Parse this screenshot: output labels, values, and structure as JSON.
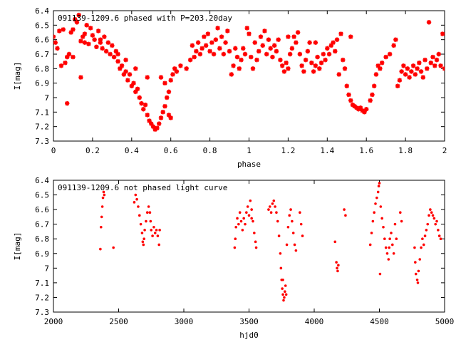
{
  "chart_data": [
    {
      "type": "scatter",
      "title": "091139-1209.6 phased with P=203.20day",
      "xlabel": "phase",
      "ylabel": "I[mag]",
      "xlim": [
        0,
        2
      ],
      "ylim": [
        7.3,
        6.4
      ],
      "y_inverted": true,
      "grid": false,
      "legend": "none",
      "marker": "star",
      "color": "#ff0000",
      "x_ticks": [
        "0",
        "0.2",
        "0.4",
        "0.6",
        "0.8",
        "1",
        "1.2",
        "1.4",
        "1.6",
        "1.8",
        "2"
      ],
      "y_ticks": [
        "6.4",
        "6.5",
        "6.6",
        "6.7",
        "6.8",
        "6.9",
        "7",
        "7.1",
        "7.2",
        "7.3"
      ],
      "points": [
        [
          0.0,
          6.58
        ],
        [
          0.01,
          6.62
        ],
        [
          0.02,
          6.66
        ],
        [
          0.03,
          6.54
        ],
        [
          0.04,
          6.78
        ],
        [
          0.05,
          6.53
        ],
        [
          0.06,
          6.76
        ],
        [
          0.07,
          6.72
        ],
        [
          0.07,
          7.04
        ],
        [
          0.08,
          6.7
        ],
        [
          0.09,
          6.55
        ],
        [
          0.1,
          6.72
        ],
        [
          0.1,
          6.53
        ],
        [
          0.11,
          6.46
        ],
        [
          0.12,
          6.48
        ],
        [
          0.13,
          6.43
        ],
        [
          0.14,
          6.61
        ],
        [
          0.14,
          6.86
        ],
        [
          0.15,
          6.58
        ],
        [
          0.16,
          6.62
        ],
        [
          0.17,
          6.5
        ],
        [
          0.18,
          6.63
        ],
        [
          0.19,
          6.52
        ],
        [
          0.2,
          6.57
        ],
        [
          0.21,
          6.6
        ],
        [
          0.22,
          6.65
        ],
        [
          0.23,
          6.54
        ],
        [
          0.24,
          6.62
        ],
        [
          0.25,
          6.66
        ],
        [
          0.26,
          6.58
        ],
        [
          0.27,
          6.68
        ],
        [
          0.28,
          6.62
        ],
        [
          0.29,
          6.7
        ],
        [
          0.3,
          6.64
        ],
        [
          0.31,
          6.72
        ],
        [
          0.32,
          6.68
        ],
        [
          0.33,
          6.75
        ],
        [
          0.34,
          6.8
        ],
        [
          0.35,
          6.78
        ],
        [
          0.36,
          6.84
        ],
        [
          0.37,
          6.82
        ],
        [
          0.38,
          6.88
        ],
        [
          0.39,
          6.84
        ],
        [
          0.4,
          6.92
        ],
        [
          0.41,
          6.9
        ],
        [
          0.42,
          6.96
        ],
        [
          0.43,
          6.94
        ],
        [
          0.44,
          7.0
        ],
        [
          0.45,
          7.04
        ],
        [
          0.46,
          7.08
        ],
        [
          0.47,
          7.05
        ],
        [
          0.48,
          7.12
        ],
        [
          0.49,
          7.16
        ],
        [
          0.5,
          7.18
        ],
        [
          0.51,
          7.2
        ],
        [
          0.52,
          7.22
        ],
        [
          0.53,
          7.21
        ],
        [
          0.54,
          7.18
        ],
        [
          0.55,
          7.14
        ],
        [
          0.56,
          7.1
        ],
        [
          0.57,
          7.06
        ],
        [
          0.58,
          7.0
        ],
        [
          0.59,
          6.96
        ],
        [
          0.6,
          6.88
        ],
        [
          0.61,
          6.84
        ],
        [
          0.62,
          6.8
        ],
        [
          0.63,
          6.82
        ],
        [
          0.55,
          6.86
        ],
        [
          0.57,
          6.9
        ],
        [
          0.59,
          7.12
        ],
        [
          0.6,
          7.14
        ],
        [
          0.48,
          6.86
        ],
        [
          0.42,
          6.8
        ],
        [
          0.65,
          6.78
        ],
        [
          0.68,
          6.8
        ],
        [
          0.7,
          6.74
        ],
        [
          0.71,
          6.64
        ],
        [
          0.72,
          6.72
        ],
        [
          0.73,
          6.68
        ],
        [
          0.74,
          6.62
        ],
        [
          0.75,
          6.7
        ],
        [
          0.76,
          6.66
        ],
        [
          0.77,
          6.58
        ],
        [
          0.78,
          6.64
        ],
        [
          0.79,
          6.56
        ],
        [
          0.8,
          6.68
        ],
        [
          0.81,
          6.62
        ],
        [
          0.82,
          6.7
        ],
        [
          0.83,
          6.6
        ],
        [
          0.84,
          6.52
        ],
        [
          0.85,
          6.66
        ],
        [
          0.86,
          6.58
        ],
        [
          0.87,
          6.7
        ],
        [
          0.88,
          6.62
        ],
        [
          0.89,
          6.54
        ],
        [
          0.9,
          6.68
        ],
        [
          0.91,
          6.84
        ],
        [
          0.92,
          6.78
        ],
        [
          0.93,
          6.66
        ],
        [
          0.94,
          6.72
        ],
        [
          0.95,
          6.8
        ],
        [
          0.96,
          6.74
        ],
        [
          0.97,
          6.66
        ],
        [
          0.98,
          6.7
        ],
        [
          0.99,
          6.52
        ],
        [
          1.0,
          6.56
        ],
        [
          1.01,
          6.72
        ],
        [
          1.02,
          6.8
        ],
        [
          1.03,
          6.62
        ],
        [
          1.04,
          6.74
        ],
        [
          1.05,
          6.68
        ],
        [
          1.06,
          6.58
        ],
        [
          1.07,
          6.64
        ],
        [
          1.08,
          6.54
        ],
        [
          1.09,
          6.7
        ],
        [
          1.1,
          6.6
        ],
        [
          1.11,
          6.66
        ],
        [
          1.12,
          6.72
        ],
        [
          1.13,
          6.64
        ],
        [
          1.14,
          6.68
        ],
        [
          1.15,
          6.6
        ],
        [
          1.16,
          6.74
        ],
        [
          1.17,
          6.78
        ],
        [
          1.18,
          6.82
        ],
        [
          1.19,
          6.76
        ],
        [
          1.2,
          6.8
        ],
        [
          1.21,
          6.7
        ],
        [
          1.22,
          6.66
        ],
        [
          1.23,
          6.58
        ],
        [
          1.24,
          6.62
        ],
        [
          1.25,
          6.55
        ],
        [
          1.26,
          6.7
        ],
        [
          1.27,
          6.78
        ],
        [
          1.28,
          6.82
        ],
        [
          1.29,
          6.74
        ],
        [
          1.3,
          6.68
        ],
        [
          1.31,
          6.62
        ],
        [
          1.32,
          6.76
        ],
        [
          1.33,
          6.82
        ],
        [
          1.34,
          6.78
        ],
        [
          1.35,
          6.72
        ],
        [
          1.36,
          6.8
        ],
        [
          1.37,
          6.76
        ],
        [
          1.38,
          6.7
        ],
        [
          1.39,
          6.74
        ],
        [
          1.4,
          6.66
        ],
        [
          1.41,
          6.7
        ],
        [
          1.42,
          6.64
        ],
        [
          1.43,
          6.62
        ],
        [
          1.44,
          6.68
        ],
        [
          1.45,
          6.6
        ],
        [
          1.46,
          6.84
        ],
        [
          1.47,
          6.56
        ],
        [
          1.48,
          6.74
        ],
        [
          1.49,
          6.8
        ],
        [
          1.5,
          6.92
        ],
        [
          1.51,
          6.98
        ],
        [
          1.52,
          7.02
        ],
        [
          1.53,
          7.05
        ],
        [
          1.54,
          7.06
        ],
        [
          1.55,
          7.07
        ],
        [
          1.56,
          7.08
        ],
        [
          1.57,
          7.07
        ],
        [
          1.58,
          7.09
        ],
        [
          1.59,
          7.1
        ],
        [
          1.6,
          7.08
        ],
        [
          1.62,
          7.02
        ],
        [
          1.63,
          6.98
        ],
        [
          1.64,
          6.92
        ],
        [
          1.65,
          6.84
        ],
        [
          1.66,
          6.78
        ],
        [
          1.67,
          6.8
        ],
        [
          1.68,
          6.76
        ],
        [
          1.7,
          6.72
        ],
        [
          1.72,
          6.7
        ],
        [
          1.74,
          6.64
        ],
        [
          1.75,
          6.6
        ],
        [
          1.76,
          6.92
        ],
        [
          1.77,
          6.88
        ],
        [
          1.78,
          6.82
        ],
        [
          1.79,
          6.78
        ],
        [
          1.8,
          6.84
        ],
        [
          1.81,
          6.8
        ],
        [
          1.82,
          6.86
        ],
        [
          1.83,
          6.82
        ],
        [
          1.84,
          6.78
        ],
        [
          1.85,
          6.84
        ],
        [
          1.86,
          6.8
        ],
        [
          1.87,
          6.76
        ],
        [
          1.88,
          6.82
        ],
        [
          1.89,
          6.86
        ],
        [
          1.9,
          6.74
        ],
        [
          1.91,
          6.8
        ],
        [
          1.92,
          6.48
        ],
        [
          1.93,
          6.76
        ],
        [
          1.94,
          6.72
        ],
        [
          1.95,
          6.78
        ],
        [
          1.96,
          6.74
        ],
        [
          1.97,
          6.7
        ],
        [
          1.98,
          6.78
        ],
        [
          1.99,
          6.56
        ],
        [
          2.0,
          6.8
        ],
        [
          1.52,
          6.58
        ],
        [
          1.34,
          6.62
        ],
        [
          1.2,
          6.58
        ],
        [
          0.24,
          6.6
        ],
        [
          0.16,
          6.56
        ],
        [
          0.33,
          6.7
        ],
        [
          0.37,
          6.74
        ]
      ]
    },
    {
      "type": "scatter",
      "title": "091139-1209.6 not phased light curve",
      "xlabel": "hjd0",
      "ylabel": "I[mag]",
      "xlim": [
        2000,
        5000
      ],
      "ylim": [
        7.3,
        6.4
      ],
      "y_inverted": true,
      "grid": false,
      "legend": "none",
      "marker": "dot",
      "color": "#ff0000",
      "x_ticks": [
        "2000",
        "2500",
        "3000",
        "3500",
        "4000",
        "4500",
        "5000"
      ],
      "y_ticks": [
        "6.4",
        "6.5",
        "6.6",
        "6.7",
        "6.8",
        "6.9",
        "7",
        "7.1",
        "7.2",
        "7.3"
      ],
      "points": [
        [
          2360,
          6.87
        ],
        [
          2365,
          6.72
        ],
        [
          2370,
          6.65
        ],
        [
          2375,
          6.58
        ],
        [
          2380,
          6.52
        ],
        [
          2385,
          6.48
        ],
        [
          2390,
          6.5
        ],
        [
          2460,
          6.86
        ],
        [
          2620,
          6.55
        ],
        [
          2630,
          6.5
        ],
        [
          2640,
          6.53
        ],
        [
          2650,
          6.58
        ],
        [
          2660,
          6.64
        ],
        [
          2670,
          6.7
        ],
        [
          2680,
          6.76
        ],
        [
          2685,
          6.82
        ],
        [
          2690,
          6.84
        ],
        [
          2695,
          6.8
        ],
        [
          2700,
          6.74
        ],
        [
          2710,
          6.68
        ],
        [
          2720,
          6.62
        ],
        [
          2730,
          6.58
        ],
        [
          2740,
          6.62
        ],
        [
          2745,
          6.68
        ],
        [
          2750,
          6.74
        ],
        [
          2760,
          6.78
        ],
        [
          2770,
          6.72
        ],
        [
          2780,
          6.76
        ],
        [
          2790,
          6.74
        ],
        [
          2800,
          6.78
        ],
        [
          2810,
          6.84
        ],
        [
          2815,
          6.74
        ],
        [
          3390,
          6.86
        ],
        [
          3395,
          6.8
        ],
        [
          3400,
          6.72
        ],
        [
          3410,
          6.66
        ],
        [
          3420,
          6.7
        ],
        [
          3430,
          6.62
        ],
        [
          3440,
          6.68
        ],
        [
          3450,
          6.74
        ],
        [
          3460,
          6.66
        ],
        [
          3470,
          6.7
        ],
        [
          3480,
          6.62
        ],
        [
          3490,
          6.58
        ],
        [
          3500,
          6.64
        ],
        [
          3510,
          6.54
        ],
        [
          3520,
          6.6
        ],
        [
          3530,
          6.68
        ],
        [
          3540,
          6.76
        ],
        [
          3550,
          6.82
        ],
        [
          3555,
          6.86
        ],
        [
          3520,
          6.66
        ],
        [
          3650,
          6.6
        ],
        [
          3660,
          6.58
        ],
        [
          3670,
          6.62
        ],
        [
          3680,
          6.56
        ],
        [
          3690,
          6.54
        ],
        [
          3700,
          6.58
        ],
        [
          3710,
          6.62
        ],
        [
          3720,
          6.68
        ],
        [
          3730,
          6.78
        ],
        [
          3740,
          6.9
        ],
        [
          3745,
          7.0
        ],
        [
          3750,
          7.08
        ],
        [
          3755,
          7.14
        ],
        [
          3760,
          7.18
        ],
        [
          3765,
          7.22
        ],
        [
          3770,
          7.2
        ],
        [
          3775,
          7.16
        ],
        [
          3780,
          7.12
        ],
        [
          3785,
          7.18
        ],
        [
          3760,
          7.08
        ],
        [
          3790,
          6.84
        ],
        [
          3800,
          6.72
        ],
        [
          3810,
          6.64
        ],
        [
          3820,
          6.6
        ],
        [
          3830,
          6.68
        ],
        [
          3840,
          6.76
        ],
        [
          3850,
          6.84
        ],
        [
          3860,
          6.88
        ],
        [
          3890,
          6.62
        ],
        [
          3900,
          6.7
        ],
        [
          3910,
          6.78
        ],
        [
          4160,
          6.82
        ],
        [
          4170,
          6.96
        ],
        [
          4175,
          7.0
        ],
        [
          4180,
          7.02
        ],
        [
          4185,
          6.98
        ],
        [
          4230,
          6.6
        ],
        [
          4240,
          6.64
        ],
        [
          4430,
          6.84
        ],
        [
          4440,
          6.76
        ],
        [
          4450,
          6.68
        ],
        [
          4460,
          6.62
        ],
        [
          4470,
          6.56
        ],
        [
          4480,
          6.52
        ],
        [
          4490,
          6.48
        ],
        [
          4495,
          6.44
        ],
        [
          4500,
          6.42
        ],
        [
          4505,
          7.04
        ],
        [
          4510,
          6.58
        ],
        [
          4520,
          6.66
        ],
        [
          4530,
          6.72
        ],
        [
          4540,
          6.8
        ],
        [
          4550,
          6.86
        ],
        [
          4560,
          6.9
        ],
        [
          4570,
          6.94
        ],
        [
          4575,
          6.86
        ],
        [
          4580,
          6.8
        ],
        [
          4590,
          6.76
        ],
        [
          4600,
          6.84
        ],
        [
          4610,
          6.9
        ],
        [
          4620,
          6.7
        ],
        [
          4630,
          6.8
        ],
        [
          4660,
          6.62
        ],
        [
          4670,
          6.68
        ],
        [
          4770,
          6.86
        ],
        [
          4775,
          6.96
        ],
        [
          4780,
          7.04
        ],
        [
          4790,
          7.08
        ],
        [
          4795,
          7.1
        ],
        [
          4800,
          7.02
        ],
        [
          4810,
          6.94
        ],
        [
          4820,
          6.86
        ],
        [
          4830,
          6.8
        ],
        [
          4840,
          6.84
        ],
        [
          4850,
          6.78
        ],
        [
          4860,
          6.74
        ],
        [
          4870,
          6.7
        ],
        [
          4880,
          6.64
        ],
        [
          4890,
          6.6
        ],
        [
          4900,
          6.62
        ],
        [
          4910,
          6.64
        ],
        [
          4920,
          6.66
        ],
        [
          4930,
          6.7
        ],
        [
          4940,
          6.68
        ],
        [
          4950,
          6.74
        ],
        [
          4960,
          6.78
        ],
        [
          4970,
          6.8
        ]
      ]
    }
  ]
}
